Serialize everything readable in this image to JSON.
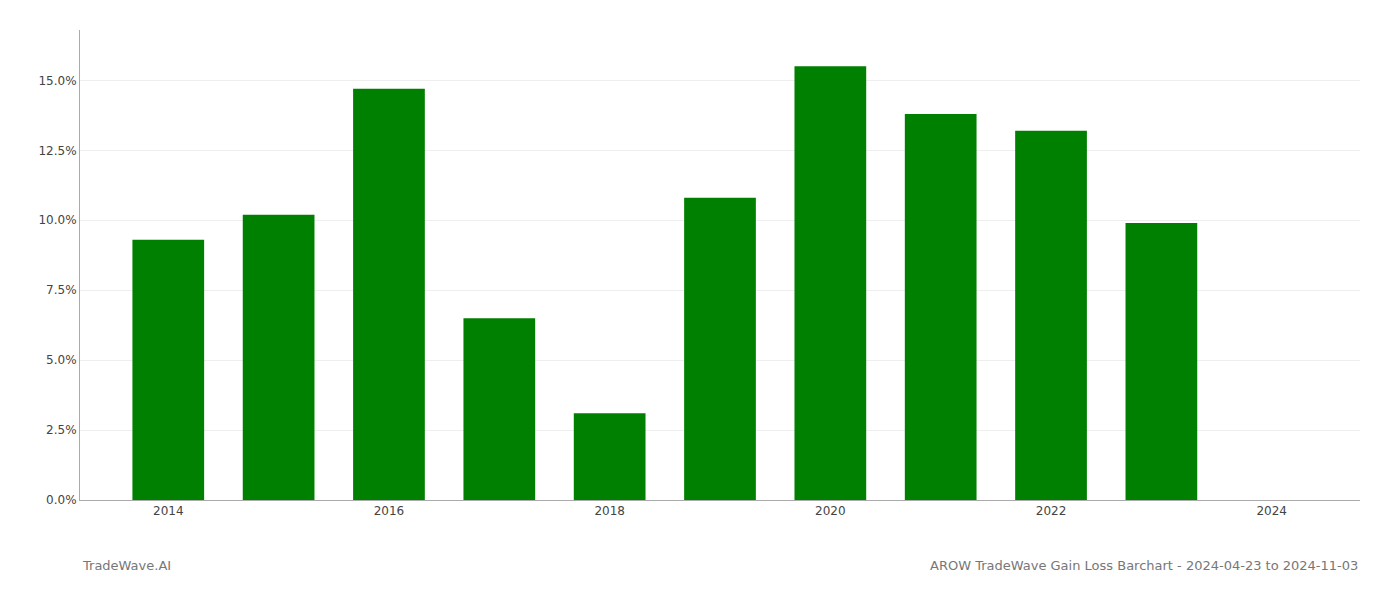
{
  "chart_data": {
    "type": "bar",
    "title": "AROW TradeWave Gain Loss Barchart - 2024-04-23 to 2024-11-03",
    "annotations": [
      "TradeWave.AI"
    ],
    "x": [
      2014,
      2015,
      2016,
      2017,
      2018,
      2019,
      2020,
      2021,
      2022,
      2023
    ],
    "values": [
      0.093,
      0.102,
      0.147,
      0.065,
      0.031,
      0.108,
      0.155,
      0.138,
      0.132,
      0.099
    ],
    "color": "#008000",
    "xlim": [
      2013.2,
      2024.8
    ],
    "xticks": [
      2014,
      2016,
      2018,
      2020,
      2022,
      2024
    ],
    "ylim": [
      0,
      0.168
    ],
    "yticks": [
      {
        "value": 0.0,
        "label": "0.0%"
      },
      {
        "value": 0.025,
        "label": "2.5%"
      },
      {
        "value": 0.05,
        "label": "5.0%"
      },
      {
        "value": 0.075,
        "label": "7.5%"
      },
      {
        "value": 0.1,
        "label": "10.0%"
      },
      {
        "value": 0.125,
        "label": "12.5%"
      },
      {
        "value": 0.15,
        "label": "15.0%"
      }
    ],
    "grid": true
  }
}
